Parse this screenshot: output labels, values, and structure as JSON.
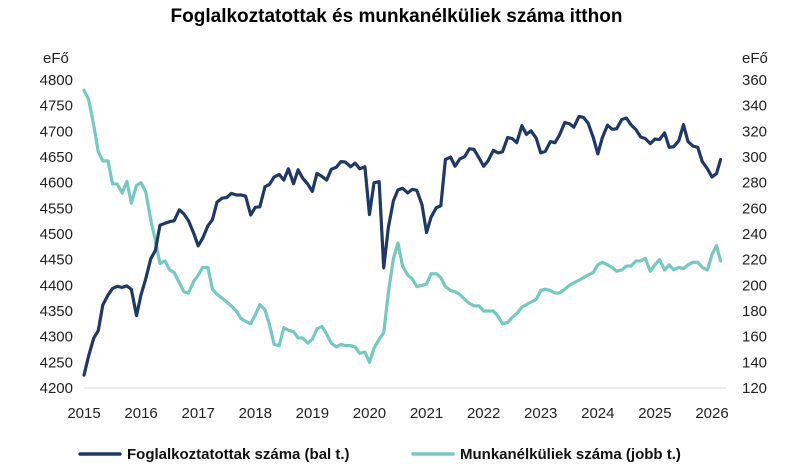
{
  "chart_data": {
    "type": "line",
    "title": "Foglalkoztatottak és munkanélküliek száma itthon",
    "left_axis_unit": "eFő",
    "right_axis_unit": "eFő",
    "ylim_left": [
      4200,
      4800
    ],
    "ylim_right": [
      120,
      360
    ],
    "left_ticks": [
      "4200",
      "4250",
      "4300",
      "4350",
      "4400",
      "4450",
      "4500",
      "4550",
      "4600",
      "4650",
      "4700",
      "4750",
      "4800"
    ],
    "right_ticks": [
      "120",
      "140",
      "160",
      "180",
      "200",
      "220",
      "240",
      "260",
      "280",
      "300",
      "320",
      "340",
      "360"
    ],
    "x_ticks": [
      "2015",
      "2016",
      "2017",
      "2018",
      "2019",
      "2020",
      "2021",
      "2022",
      "2023",
      "2024",
      "2025",
      "2026"
    ],
    "xlim": [
      2015.0,
      2026.15
    ],
    "grid": false,
    "legend_position": "bottom",
    "series": [
      {
        "name": "Foglalkoztatottak száma (bal t.)",
        "axis": "left",
        "color": "#1f3864",
        "points": [
          [
            2015.0,
            4225
          ],
          [
            2015.08,
            4262
          ],
          [
            2015.17,
            4297
          ],
          [
            2015.25,
            4312
          ],
          [
            2015.33,
            4362
          ],
          [
            2015.42,
            4381
          ],
          [
            2015.5,
            4394
          ],
          [
            2015.58,
            4398
          ],
          [
            2015.67,
            4396
          ],
          [
            2015.75,
            4399
          ],
          [
            2015.83,
            4392
          ],
          [
            2015.92,
            4341
          ],
          [
            2016.0,
            4382
          ],
          [
            2016.08,
            4412
          ],
          [
            2016.17,
            4452
          ],
          [
            2016.25,
            4468
          ],
          [
            2016.33,
            4517
          ],
          [
            2016.42,
            4521
          ],
          [
            2016.5,
            4524
          ],
          [
            2016.58,
            4526
          ],
          [
            2016.67,
            4547
          ],
          [
            2016.75,
            4539
          ],
          [
            2016.83,
            4526
          ],
          [
            2016.92,
            4502
          ],
          [
            2017.0,
            4477
          ],
          [
            2017.08,
            4492
          ],
          [
            2017.17,
            4516
          ],
          [
            2017.25,
            4528
          ],
          [
            2017.33,
            4562
          ],
          [
            2017.42,
            4570
          ],
          [
            2017.5,
            4571
          ],
          [
            2017.58,
            4579
          ],
          [
            2017.67,
            4576
          ],
          [
            2017.75,
            4576
          ],
          [
            2017.83,
            4574
          ],
          [
            2017.92,
            4537
          ],
          [
            2018.0,
            4552
          ],
          [
            2018.08,
            4553
          ],
          [
            2018.17,
            4592
          ],
          [
            2018.25,
            4597
          ],
          [
            2018.33,
            4611
          ],
          [
            2018.42,
            4616
          ],
          [
            2018.5,
            4605
          ],
          [
            2018.58,
            4627
          ],
          [
            2018.67,
            4598
          ],
          [
            2018.75,
            4625
          ],
          [
            2018.83,
            4609
          ],
          [
            2018.92,
            4597
          ],
          [
            2019.0,
            4583
          ],
          [
            2019.08,
            4618
          ],
          [
            2019.17,
            4612
          ],
          [
            2019.25,
            4605
          ],
          [
            2019.33,
            4626
          ],
          [
            2019.42,
            4630
          ],
          [
            2019.5,
            4641
          ],
          [
            2019.58,
            4640
          ],
          [
            2019.67,
            4631
          ],
          [
            2019.75,
            4638
          ],
          [
            2019.83,
            4627
          ],
          [
            2019.92,
            4631
          ],
          [
            2020.0,
            4538
          ],
          [
            2020.08,
            4600
          ],
          [
            2020.17,
            4602
          ],
          [
            2020.25,
            4434
          ],
          [
            2020.33,
            4512
          ],
          [
            2020.42,
            4565
          ],
          [
            2020.5,
            4586
          ],
          [
            2020.58,
            4589
          ],
          [
            2020.67,
            4580
          ],
          [
            2020.75,
            4587
          ],
          [
            2020.83,
            4585
          ],
          [
            2020.92,
            4557
          ],
          [
            2021.0,
            4503
          ],
          [
            2021.08,
            4533
          ],
          [
            2021.17,
            4551
          ],
          [
            2021.25,
            4555
          ],
          [
            2021.33,
            4645
          ],
          [
            2021.42,
            4650
          ],
          [
            2021.5,
            4632
          ],
          [
            2021.58,
            4646
          ],
          [
            2021.67,
            4651
          ],
          [
            2021.75,
            4666
          ],
          [
            2021.83,
            4665
          ],
          [
            2021.92,
            4648
          ],
          [
            2022.0,
            4632
          ],
          [
            2022.08,
            4643
          ],
          [
            2022.17,
            4663
          ],
          [
            2022.25,
            4658
          ],
          [
            2022.33,
            4660
          ],
          [
            2022.42,
            4688
          ],
          [
            2022.5,
            4686
          ],
          [
            2022.58,
            4678
          ],
          [
            2022.67,
            4711
          ],
          [
            2022.75,
            4694
          ],
          [
            2022.83,
            4701
          ],
          [
            2022.92,
            4687
          ],
          [
            2023.0,
            4658
          ],
          [
            2023.08,
            4661
          ],
          [
            2023.17,
            4680
          ],
          [
            2023.25,
            4678
          ],
          [
            2023.33,
            4693
          ],
          [
            2023.42,
            4717
          ],
          [
            2023.5,
            4715
          ],
          [
            2023.58,
            4708
          ],
          [
            2023.67,
            4729
          ],
          [
            2023.75,
            4727
          ],
          [
            2023.83,
            4716
          ],
          [
            2023.92,
            4688
          ],
          [
            2024.0,
            4656
          ],
          [
            2024.08,
            4688
          ],
          [
            2024.17,
            4712
          ],
          [
            2024.25,
            4704
          ],
          [
            2024.33,
            4705
          ],
          [
            2024.42,
            4723
          ],
          [
            2024.5,
            4726
          ],
          [
            2024.58,
            4713
          ],
          [
            2024.67,
            4703
          ],
          [
            2024.75,
            4689
          ],
          [
            2024.83,
            4686
          ],
          [
            2024.92,
            4676
          ],
          [
            2025.0,
            4685
          ],
          [
            2025.08,
            4684
          ],
          [
            2025.17,
            4697
          ],
          [
            2025.25,
            4669
          ],
          [
            2025.33,
            4670
          ],
          [
            2025.42,
            4682
          ],
          [
            2025.5,
            4713
          ],
          [
            2025.58,
            4680
          ],
          [
            2025.67,
            4671
          ],
          [
            2025.75,
            4669
          ],
          [
            2025.83,
            4641
          ],
          [
            2025.92,
            4627
          ],
          [
            2026.0,
            4611
          ],
          [
            2026.08,
            4618
          ],
          [
            2026.15,
            4645
          ]
        ]
      },
      {
        "name": "Munkanélküliek száma (jobb t.)",
        "axis": "right",
        "color": "#76c8c0",
        "points": [
          [
            2015.0,
            352
          ],
          [
            2015.08,
            345
          ],
          [
            2015.17,
            325
          ],
          [
            2015.25,
            304
          ],
          [
            2015.33,
            297
          ],
          [
            2015.42,
            297
          ],
          [
            2015.5,
            279
          ],
          [
            2015.58,
            279
          ],
          [
            2015.67,
            272
          ],
          [
            2015.75,
            281
          ],
          [
            2015.83,
            264
          ],
          [
            2015.92,
            278
          ],
          [
            2016.0,
            280
          ],
          [
            2016.08,
            273
          ],
          [
            2016.17,
            251
          ],
          [
            2016.25,
            235
          ],
          [
            2016.33,
            217
          ],
          [
            2016.42,
            219
          ],
          [
            2016.5,
            212
          ],
          [
            2016.58,
            210
          ],
          [
            2016.67,
            202
          ],
          [
            2016.75,
            195
          ],
          [
            2016.83,
            194
          ],
          [
            2016.92,
            203
          ],
          [
            2017.0,
            208
          ],
          [
            2017.08,
            214
          ],
          [
            2017.17,
            214
          ],
          [
            2017.25,
            197
          ],
          [
            2017.33,
            193
          ],
          [
            2017.42,
            190
          ],
          [
            2017.5,
            187
          ],
          [
            2017.58,
            184
          ],
          [
            2017.67,
            180
          ],
          [
            2017.75,
            174
          ],
          [
            2017.83,
            172
          ],
          [
            2017.92,
            170
          ],
          [
            2018.0,
            177
          ],
          [
            2018.08,
            185
          ],
          [
            2018.17,
            181
          ],
          [
            2018.25,
            169
          ],
          [
            2018.33,
            154
          ],
          [
            2018.42,
            153
          ],
          [
            2018.5,
            167
          ],
          [
            2018.58,
            165
          ],
          [
            2018.67,
            164
          ],
          [
            2018.75,
            159
          ],
          [
            2018.83,
            159
          ],
          [
            2018.92,
            155
          ],
          [
            2019.0,
            158
          ],
          [
            2019.08,
            166
          ],
          [
            2019.17,
            168
          ],
          [
            2019.25,
            162
          ],
          [
            2019.33,
            155
          ],
          [
            2019.42,
            152
          ],
          [
            2019.5,
            154
          ],
          [
            2019.58,
            153
          ],
          [
            2019.67,
            153
          ],
          [
            2019.75,
            152
          ],
          [
            2019.83,
            147
          ],
          [
            2019.92,
            148
          ],
          [
            2020.0,
            140
          ],
          [
            2020.08,
            151
          ],
          [
            2020.17,
            158
          ],
          [
            2020.25,
            163
          ],
          [
            2020.33,
            194
          ],
          [
            2020.42,
            221
          ],
          [
            2020.5,
            233
          ],
          [
            2020.58,
            215
          ],
          [
            2020.67,
            208
          ],
          [
            2020.75,
            205
          ],
          [
            2020.83,
            199
          ],
          [
            2020.92,
            200
          ],
          [
            2021.0,
            201
          ],
          [
            2021.08,
            209
          ],
          [
            2021.17,
            209
          ],
          [
            2021.25,
            206
          ],
          [
            2021.33,
            199
          ],
          [
            2021.42,
            196
          ],
          [
            2021.5,
            195
          ],
          [
            2021.58,
            193
          ],
          [
            2021.67,
            189
          ],
          [
            2021.75,
            186
          ],
          [
            2021.83,
            184
          ],
          [
            2021.92,
            184
          ],
          [
            2022.0,
            180
          ],
          [
            2022.08,
            180
          ],
          [
            2022.17,
            180
          ],
          [
            2022.25,
            176
          ],
          [
            2022.33,
            170
          ],
          [
            2022.42,
            171
          ],
          [
            2022.5,
            175
          ],
          [
            2022.58,
            178
          ],
          [
            2022.67,
            183
          ],
          [
            2022.75,
            185
          ],
          [
            2022.83,
            187
          ],
          [
            2022.92,
            189
          ],
          [
            2023.0,
            196
          ],
          [
            2023.08,
            197
          ],
          [
            2023.17,
            196
          ],
          [
            2023.25,
            194
          ],
          [
            2023.33,
            194
          ],
          [
            2023.42,
            197
          ],
          [
            2023.5,
            200
          ],
          [
            2023.58,
            202
          ],
          [
            2023.67,
            204
          ],
          [
            2023.75,
            206
          ],
          [
            2023.83,
            208
          ],
          [
            2023.92,
            210
          ],
          [
            2024.0,
            216
          ],
          [
            2024.08,
            218
          ],
          [
            2024.17,
            216
          ],
          [
            2024.25,
            214
          ],
          [
            2024.33,
            211
          ],
          [
            2024.42,
            212
          ],
          [
            2024.5,
            215
          ],
          [
            2024.58,
            215
          ],
          [
            2024.67,
            219
          ],
          [
            2024.75,
            219
          ],
          [
            2024.83,
            221
          ],
          [
            2024.92,
            211
          ],
          [
            2025.0,
            216
          ],
          [
            2025.08,
            220
          ],
          [
            2025.17,
            212
          ],
          [
            2025.25,
            216
          ],
          [
            2025.33,
            212
          ],
          [
            2025.42,
            214
          ],
          [
            2025.5,
            213
          ],
          [
            2025.58,
            216
          ],
          [
            2025.67,
            218
          ],
          [
            2025.75,
            218
          ],
          [
            2025.83,
            214
          ],
          [
            2025.92,
            212
          ],
          [
            2026.0,
            224
          ],
          [
            2026.08,
            231
          ],
          [
            2026.15,
            219
          ]
        ]
      }
    ]
  }
}
